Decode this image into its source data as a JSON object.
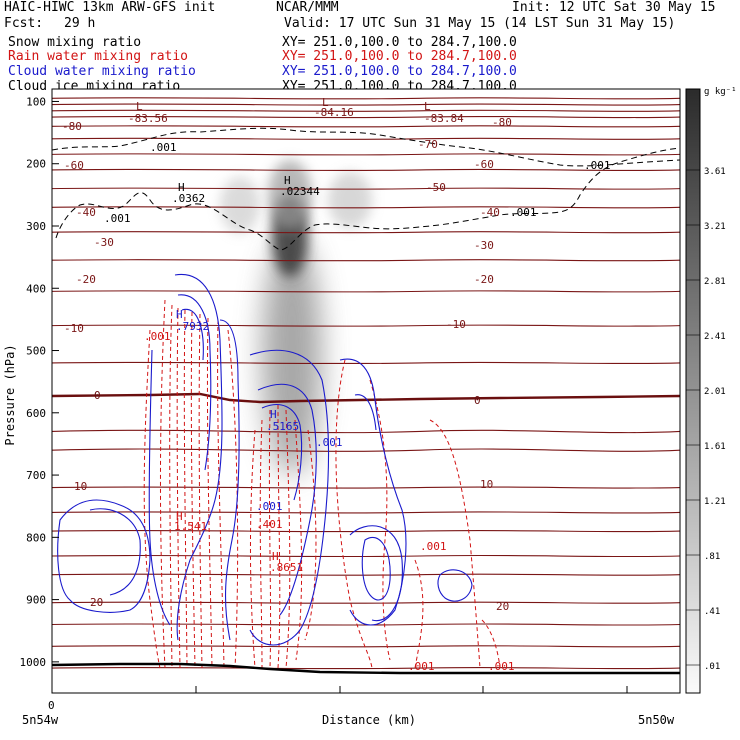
{
  "header": {
    "model": "HAIC-HIWC 13km ARW-GFS init",
    "center": "NCAR/MMM",
    "init": "Init: 12 UTC Sat 30 May 15",
    "fcst_label": "Fcst:",
    "fcst_value": "29 h",
    "valid": "Valid: 17 UTC Sun 31 May 15 (14 LST Sun 31 May 15)"
  },
  "fields": [
    {
      "name": "Snow mixing ratio",
      "xy": "XY= 251.0,100.0 to 284.7,100.0",
      "color": "#000000"
    },
    {
      "name": "Rain water mixing ratio",
      "xy": "XY= 251.0,100.0 to 284.7,100.0",
      "color": "#d21414"
    },
    {
      "name": "Cloud water mixing ratio",
      "xy": "XY= 251.0,100.0 to 284.7,100.0",
      "color": "#1a1acc"
    },
    {
      "name": "Cloud ice mixing ratio",
      "xy": "XY= 251.0,100.0 to 284.7,100.0",
      "color": "#000000"
    }
  ],
  "chart_data": {
    "type": "heatmap",
    "xlabel": "Distance (km)",
    "ylabel": "Pressure (hPa)",
    "ylim": [
      1050,
      80
    ],
    "yticks": [
      100,
      200,
      300,
      400,
      500,
      600,
      700,
      800,
      900,
      1000
    ],
    "x_tick_label": "0",
    "x_left_label": "5n54w",
    "x_right_label": "5n50w",
    "colorbar": {
      "unit": "g kg⁻¹",
      "ticks": [
        "3.61",
        "3.21",
        "2.81",
        "2.41",
        "2.01",
        "1.61",
        "1.21",
        ".81",
        ".41",
        ".01"
      ],
      "levels": [
        3.61,
        3.21,
        2.81,
        2.41,
        2.01,
        1.61,
        1.21,
        0.81,
        0.41,
        0.01
      ]
    },
    "temperature_labels": [
      {
        "text": "-80",
        "p": 127
      },
      {
        "text": "-80",
        "p": 127
      },
      {
        "text": "-70",
        "p": 145
      },
      {
        "text": "-60",
        "p": 165
      },
      {
        "text": "-60",
        "p": 165
      },
      {
        "text": "-50",
        "p": 189
      },
      {
        "text": "-40",
        "p": 248
      },
      {
        "text": "-40",
        "p": 248
      },
      {
        "text": "-30",
        "p": 287
      },
      {
        "text": "-30",
        "p": 287
      },
      {
        "text": "-20",
        "p": 362
      },
      {
        "text": "-20",
        "p": 362
      },
      {
        "text": "-10",
        "p": 461
      },
      {
        "text": "-10",
        "p": 461
      },
      {
        "text": "0",
        "p": 562
      },
      {
        "text": "0",
        "p": 562
      },
      {
        "text": "10",
        "p": 717
      },
      {
        "text": "10",
        "p": 717
      },
      {
        "text": "20",
        "p": 891
      },
      {
        "text": "20",
        "p": 895
      }
    ],
    "extrema_labels": [
      {
        "text": "L",
        "value": "-83.56"
      },
      {
        "text": "L",
        "value": "-84.16"
      },
      {
        "text": "L",
        "value": "-83.84"
      },
      {
        "text": "H",
        "value": ".0362"
      },
      {
        "text": "H",
        "value": ".02344"
      },
      {
        "text": "H",
        "value": ".7932"
      },
      {
        "text": "H",
        "value": ".5165"
      },
      {
        "text": "H",
        "value": "1.541"
      },
      {
        "text": "H",
        "value": ".8651"
      }
    ],
    "contour_labels": [
      ".001",
      ".001",
      ".001",
      ".001",
      ".001",
      ".001",
      ".401",
      ".001",
      ".001",
      ".001",
      ".001"
    ]
  }
}
